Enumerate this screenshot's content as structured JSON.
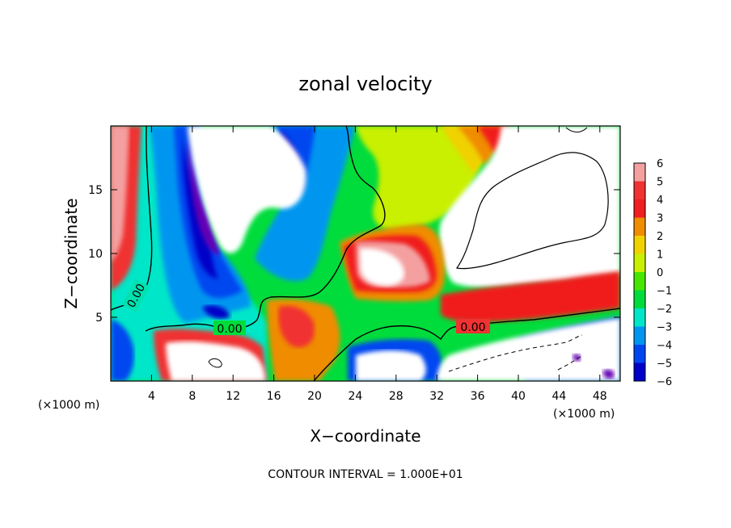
{
  "chart_data": {
    "type": "heatmap",
    "title": "zonal velocity",
    "xlabel": "X−coordinate",
    "ylabel": "Z−coordinate",
    "x_unit_left": "(×1000 m)",
    "x_unit_right": "(×1000 m)",
    "xlim": [
      0,
      50
    ],
    "ylim": [
      0,
      20
    ],
    "x_ticks": [
      4,
      8,
      12,
      16,
      20,
      24,
      28,
      32,
      36,
      40,
      44,
      48
    ],
    "x_tick_labels": [
      "4",
      "8",
      "12",
      "16",
      "20",
      "24",
      "28",
      "32",
      "36",
      "40",
      "44",
      "48"
    ],
    "y_ticks": [
      5,
      10,
      15
    ],
    "y_tick_labels": [
      "5",
      "10",
      "15"
    ],
    "contour_interval_text": "CONTOUR INTERVAL = 1.000E+01",
    "contour_labels": [
      "0.00",
      "0.00",
      "0.00"
    ],
    "colorbar": {
      "levels": [
        6,
        5,
        4,
        3,
        2,
        1,
        0,
        -1,
        -2,
        -3,
        -4,
        -5,
        -6
      ],
      "labels": [
        "6",
        "5",
        "4",
        "3",
        "2",
        "1",
        "0",
        "−1",
        "−2",
        "−3",
        "−4",
        "−5",
        "−6"
      ],
      "colors": [
        "#f4a0a0",
        "#f03232",
        "#f01e1e",
        "#f08c00",
        "#f0d200",
        "#c8f000",
        "#46e600",
        "#00dc3c",
        "#00e6c8",
        "#0096f0",
        "#0046f0",
        "#0000c8",
        "#6400b4"
      ]
    },
    "grid": false
  }
}
